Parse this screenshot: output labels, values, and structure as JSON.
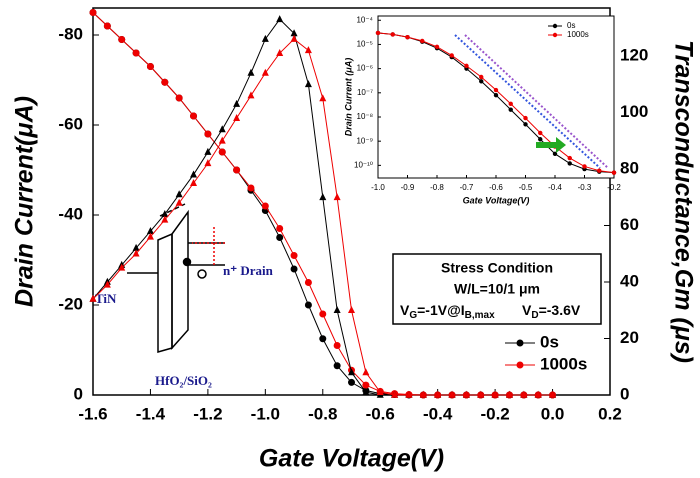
{
  "chart_data": [
    {
      "type": "line",
      "xlabel": "Gate Voltage(V)",
      "ylabel": "Drain Current(μA)",
      "y2label": "Transconductance,Gm (μs)",
      "x": [
        -1.6,
        -1.55,
        -1.5,
        -1.45,
        -1.4,
        -1.35,
        -1.3,
        -1.25,
        -1.2,
        -1.15,
        -1.1,
        -1.05,
        -1.0,
        -0.95,
        -0.9,
        -0.85,
        -0.8,
        -0.75,
        -0.7,
        -0.65,
        -0.6,
        -0.55,
        -0.5,
        -0.45,
        -0.4,
        -0.35,
        -0.3,
        -0.25,
        -0.2,
        -0.15,
        -0.1,
        -0.05,
        0
      ],
      "xlim": [
        -1.6,
        0.2
      ],
      "xticks": [
        -1.6,
        -1.4,
        -1.2,
        {
          "value": -1,
          "label": "-1.0"
        },
        -0.8,
        -0.6,
        -0.4,
        -0.2,
        {
          "value": 0,
          "label": "0.0"
        },
        0.2
      ],
      "ylim": [
        0,
        -86
      ],
      "yticks": [
        0,
        -20,
        -40,
        -60,
        -80
      ],
      "y2lim": [
        0,
        137
      ],
      "y2ticks": [
        0,
        20,
        40,
        60,
        80,
        100,
        120
      ],
      "legend": "lower right",
      "series": [
        {
          "name": "0s",
          "color": "#000000",
          "marker": "circle",
          "values": [
            -85,
            -82,
            -79,
            -76,
            -73,
            -69.5,
            -66,
            -62,
            -58,
            -54,
            -50,
            -45.5,
            -41,
            -35,
            -28,
            -20,
            -12.5,
            -6.5,
            -2.8,
            -1,
            -0.3,
            -0.1,
            0,
            0,
            0,
            0,
            0,
            0,
            0,
            0,
            0,
            0,
            0
          ]
        },
        {
          "name": "1000s",
          "color": "#ee0000",
          "marker": "circle",
          "values": [
            -85,
            -82,
            -79,
            -76,
            -73,
            -69.5,
            -66,
            -62,
            -58,
            -54,
            -50,
            -46,
            -42,
            -37,
            -31,
            -25,
            -18,
            -11,
            -5.5,
            -2.2,
            -0.8,
            -0.3,
            -0.1,
            0,
            0,
            0,
            0,
            0,
            0,
            0,
            0,
            0,
            0
          ]
        },
        {
          "color": "#000000",
          "marker": "triangle",
          "axis": "y2",
          "values": [
            34,
            40,
            46,
            52,
            58,
            64,
            71,
            78,
            86,
            94,
            103,
            114,
            126,
            133,
            128,
            110,
            70,
            30,
            8,
            1,
            0,
            0,
            0,
            0,
            0,
            0,
            0,
            0,
            0,
            0,
            0,
            0,
            0
          ]
        },
        {
          "color": "#ee0000",
          "marker": "triangle",
          "axis": "y2",
          "values": [
            34,
            39,
            45,
            50,
            56,
            62,
            68,
            75,
            82,
            90,
            98,
            106,
            114,
            121,
            126,
            122,
            105,
            70,
            30,
            8,
            1,
            0,
            0,
            0,
            0,
            0,
            0,
            0,
            0,
            0,
            0,
            0,
            0
          ]
        }
      ],
      "annotations": {
        "gate": "TiN",
        "drain": "n⁺ Drain",
        "oxide": "HfO₂/SiO₂",
        "stress_title": "Stress Condition",
        "wl": "W/L=10/1 μm",
        "vg": [
          "V",
          "G",
          "=-1V@I",
          "B,max"
        ],
        "vd": [
          "V",
          "D",
          "=-3.6V"
        ]
      }
    },
    {
      "type": "line",
      "log_y": true,
      "xlabel": "Gate Voltage(V)",
      "ylabel": "Drain Current (μA)",
      "x": [
        -1.0,
        -0.95,
        -0.9,
        -0.85,
        -0.8,
        -0.75,
        -0.7,
        -0.65,
        -0.6,
        -0.55,
        -0.5,
        -0.45,
        -0.4,
        -0.35,
        -0.3,
        -0.25,
        -0.2
      ],
      "xlim": [
        -1.0,
        -0.2
      ],
      "xticks": [
        {
          "value": -1,
          "label": "-1.0"
        },
        -0.9,
        -0.8,
        -0.7,
        -0.6,
        -0.5,
        -0.4,
        -0.3,
        -0.2
      ],
      "ylim": [
        3e-11,
        0.00015
      ],
      "yticks": [
        {
          "value": 1e-10,
          "label": "10⁻¹⁰"
        },
        {
          "value": 1e-09,
          "label": "10⁻⁹"
        },
        {
          "value": 1e-08,
          "label": "10⁻⁸"
        },
        {
          "value": 1e-07,
          "label": "10⁻⁷"
        },
        {
          "value": 1e-06,
          "label": "10⁻⁶"
        },
        {
          "value": 1e-05,
          "label": "10⁻⁵"
        },
        {
          "value": 0.0001,
          "label": "10⁻⁴"
        }
      ],
      "legend": "upper right",
      "series": [
        {
          "name": "0s",
          "color": "#000000",
          "marker": "circle",
          "values": [
            3e-05,
            2.6e-05,
            2e-05,
            1.3e-05,
            7e-06,
            3e-06,
            1e-06,
            3e-07,
            8e-08,
            2e-08,
            5e-09,
            1.2e-09,
            3e-10,
            1.2e-10,
            7e-11,
            5.5e-11,
            5e-11
          ]
        },
        {
          "name": "1000s",
          "color": "#ee0000",
          "marker": "circle",
          "values": [
            3e-05,
            2.6e-05,
            2e-05,
            1.4e-05,
            8e-06,
            3.5e-06,
            1.3e-06,
            4.5e-07,
            1.3e-07,
            3.5e-08,
            9e-09,
            2.2e-09,
            6e-10,
            2e-10,
            9e-11,
            6e-11,
            5e-11
          ]
        }
      ]
    }
  ]
}
